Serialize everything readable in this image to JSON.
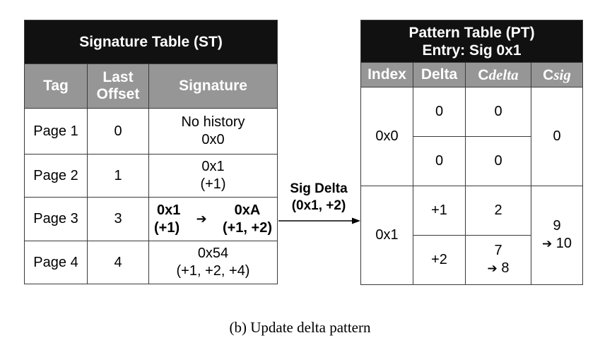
{
  "st": {
    "title": "Signature Table (ST)",
    "headers": {
      "tag": "Tag",
      "last_offset_1": "Last",
      "last_offset_2": "Offset",
      "signature": "Signature"
    },
    "rows": [
      {
        "tag": "Page 1",
        "offset": "0",
        "sig1": "No history",
        "sig2": "0x0"
      },
      {
        "tag": "Page 2",
        "offset": "1",
        "sig1": "0x1",
        "sig2": "(+1)"
      },
      {
        "tag": "Page 3",
        "offset": "3",
        "old_sig": "0x1",
        "old_deltas": "(+1)",
        "new_sig": "0xA",
        "new_deltas": "(+1, +2)"
      },
      {
        "tag": "Page 4",
        "offset": "4",
        "sig1": "0x54",
        "sig2": "(+1, +2, +4)"
      }
    ]
  },
  "connector": {
    "label1": "Sig  Delta",
    "label2": "(0x1,  +2)"
  },
  "pt": {
    "title1": "Pattern Table (PT)",
    "title2": "Entry: Sig 0x1",
    "headers": {
      "index": "Index",
      "delta": "Delta",
      "cdelta_prefix": "C",
      "cdelta_sub": "delta",
      "csig_prefix": "C",
      "csig_sub": "sig"
    },
    "groups": [
      {
        "index": "0x0",
        "csig": "0",
        "rows": [
          {
            "delta": "0",
            "cdelta": "0"
          },
          {
            "delta": "0",
            "cdelta": "0"
          }
        ]
      },
      {
        "index": "0x1",
        "csig_old": "9",
        "csig_new": "10",
        "rows": [
          {
            "delta": "+1",
            "cdelta": "2"
          },
          {
            "delta": "+2",
            "cdelta_old": "7",
            "cdelta_new": "8"
          }
        ]
      }
    ]
  },
  "caption": "(b) Update delta pattern"
}
